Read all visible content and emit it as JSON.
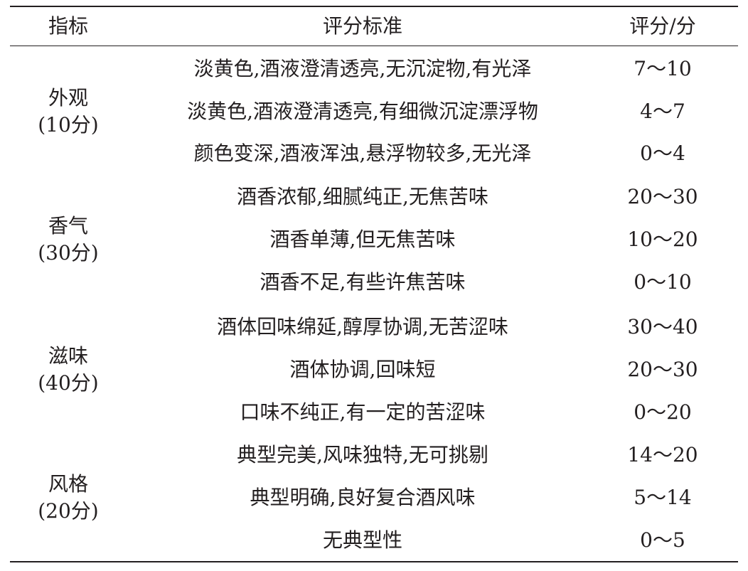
{
  "table": {
    "headers": [
      "指标",
      "评分标准",
      "评分/分"
    ],
    "groups": [
      {
        "name": "外观",
        "total": "(10分)",
        "rows": [
          {
            "criterion": "淡黄色,酒液澄清透亮,无沉淀物,有光泽",
            "score": "7～10"
          },
          {
            "criterion": "淡黄色,酒液澄清透亮,有细微沉淀漂浮物",
            "score": "4～7"
          },
          {
            "criterion": "颜色变深,酒液浑浊,悬浮物较多,无光泽",
            "score": "0～4"
          }
        ]
      },
      {
        "name": "香气",
        "total": "(30分)",
        "rows": [
          {
            "criterion": "酒香浓郁,细腻纯正,无焦苦味",
            "score": "20～30"
          },
          {
            "criterion": "酒香单薄,但无焦苦味",
            "score": "10～20"
          },
          {
            "criterion": "酒香不足,有些许焦苦味",
            "score": "0～10"
          }
        ]
      },
      {
        "name": "滋味",
        "total": "(40分)",
        "rows": [
          {
            "criterion": "酒体回味绵延,醇厚协调,无苦涩味",
            "score": "30～40"
          },
          {
            "criterion": "酒体协调,回味短",
            "score": "20～30"
          },
          {
            "criterion": "口味不纯正,有一定的苦涩味",
            "score": "0～20"
          }
        ]
      },
      {
        "name": "风格",
        "total": "(20分)",
        "rows": [
          {
            "criterion": "典型完美,风味独特,无可挑剔",
            "score": "14～20"
          },
          {
            "criterion": "典型明确,良好复合酒风味",
            "score": "5～14"
          },
          {
            "criterion": "无典型性",
            "score": "0～5"
          }
        ]
      }
    ]
  }
}
